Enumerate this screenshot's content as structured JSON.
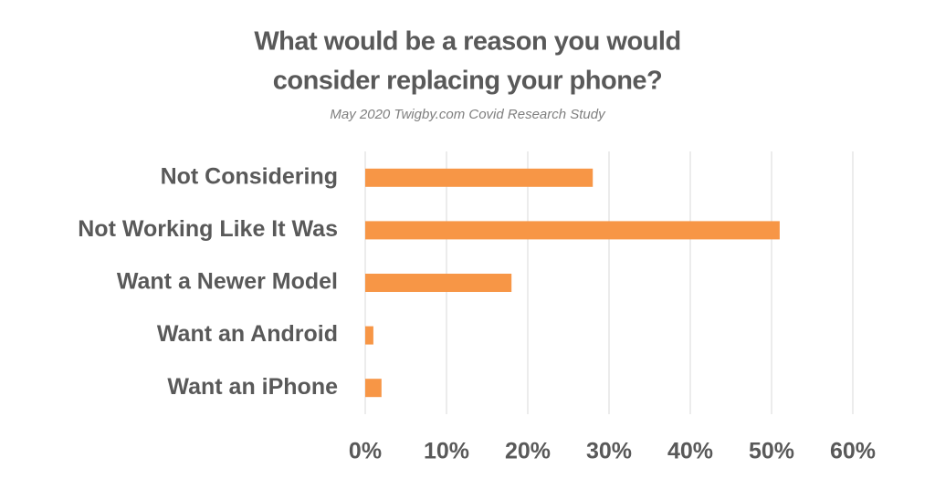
{
  "chart_data": {
    "type": "bar",
    "orientation": "horizontal",
    "title": [
      "What would be a reason you would",
      "consider replacing your phone?"
    ],
    "subtitle": "May 2020 Twigby.com Covid Research Study",
    "categories": [
      "Not Considering",
      "Not Working Like It Was",
      "Want a Newer Model",
      "Want an Android",
      "Want an iPhone"
    ],
    "values": [
      28,
      51,
      18,
      1,
      2
    ],
    "color": "#f79646",
    "xlim": [
      0,
      60
    ],
    "xticks": [
      {
        "value": 0,
        "label": "0%"
      },
      {
        "value": 10,
        "label": "10%"
      },
      {
        "value": 20,
        "label": "20%"
      },
      {
        "value": 30,
        "label": "30%"
      },
      {
        "value": 40,
        "label": "40%"
      },
      {
        "value": 50,
        "label": "50%"
      },
      {
        "value": 60,
        "label": "60%"
      }
    ],
    "grid": true
  }
}
